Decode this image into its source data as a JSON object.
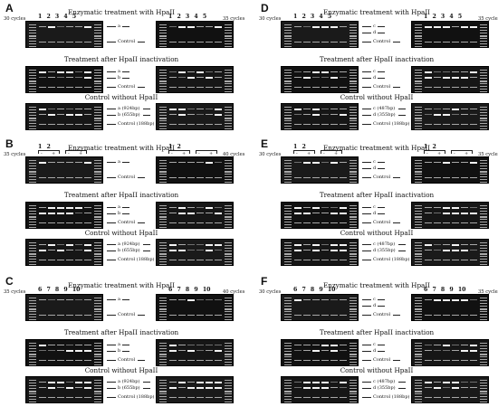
{
  "panels": [
    {
      "id": "A",
      "cycles_left": "30 cycles",
      "cycles_right": "35 cycles",
      "lanes_left": "1 2 3 4 5",
      "lanes_right": "1 2 3 4 5",
      "title_top": "Enzymatic treatment with HpaII",
      "title_mid": "Treatment after HpaII inactivation",
      "title_bot": "Control without HpaII",
      "top_labels": [
        "a",
        "Control"
      ],
      "mid_labels": [
        "a",
        "b",
        "Control"
      ],
      "bot_labels": [
        "a (924bp)",
        "b (655bp)",
        "Control (188bp)"
      ]
    },
    {
      "id": "B",
      "cycles_left": "35 cycles",
      "cycles_right": "40 cycles",
      "lanes_left": "1 2",
      "lanes_right": "1 2",
      "title_top": "Enzymatic treatment with HpaII",
      "title_mid": "Treatment after HpaII inactivation",
      "title_bot": "Control without HpaII",
      "top_labels": [
        "a",
        "Control"
      ],
      "mid_labels": [
        "a",
        "b",
        "Control"
      ],
      "bot_labels": [
        "a (924bp)",
        "b (655bp)",
        "Control (188bp)"
      ]
    },
    {
      "id": "C",
      "cycles_left": "35 cycles",
      "cycles_right": "40 cycles",
      "lanes_left": "6 7 8 9 10",
      "lanes_right": "6 7 8 9 10",
      "title_top": "Enzymatic treatment with HpaII",
      "title_mid": "Treatment after HpaII inactivation",
      "title_bot": "Control without HpaII",
      "top_labels": [
        "a",
        "Control"
      ],
      "mid_labels": [
        "a",
        "b",
        "Control"
      ],
      "bot_labels": [
        "a (924bp)",
        "b (655bp)",
        "Control (188bp)"
      ]
    },
    {
      "id": "D",
      "cycles_left": "30 cycles",
      "cycles_right": "35 cycles",
      "lanes_left": "1 2 3 4 5",
      "lanes_right": "1 2 3 4 5",
      "title_top": "Enzymatic treatment with HpaII",
      "title_mid": "Treatment after HpaII inactivation",
      "title_bot": "Control without HpaII",
      "top_labels": [
        "c",
        "d",
        "Control"
      ],
      "mid_labels": [
        "c",
        "d",
        "Control"
      ],
      "bot_labels": [
        "c (487bp)",
        "d (355bp)",
        "Control (188bp)"
      ]
    },
    {
      "id": "E",
      "cycles_left": "30 cycles",
      "cycles_right": "35 cycles",
      "lanes_left": "1 2",
      "lanes_right": "1 2",
      "title_top": "Enzymatic treatment with HpaII",
      "title_mid": "Treatment after HpaII inactivation",
      "title_bot": "Control without HpaII",
      "top_labels": [
        "c",
        "d",
        "Control"
      ],
      "mid_labels": [
        "c",
        "d",
        "Control"
      ],
      "bot_labels": [
        "c (487bp)",
        "d (355bp)",
        "Control (188bp)"
      ]
    },
    {
      "id": "F",
      "cycles_left": "30 cycles",
      "cycles_right": "35 cycles",
      "lanes_left": "6 7 8 9 10",
      "lanes_right": "6 7 8 9 10",
      "title_top": "Enzymatic treatment with HpaII",
      "title_mid": "Treatment after HpaII inactivation",
      "title_bot": "Control without HpaII",
      "top_labels": [
        "c",
        "d",
        "Control"
      ],
      "mid_labels": [
        "c",
        "d",
        "Control"
      ],
      "bot_labels": [
        "c (487bp)",
        "d (355bp)",
        "Control (188bp)"
      ]
    }
  ],
  "bracket_signs": [
    "-",
    "+"
  ]
}
